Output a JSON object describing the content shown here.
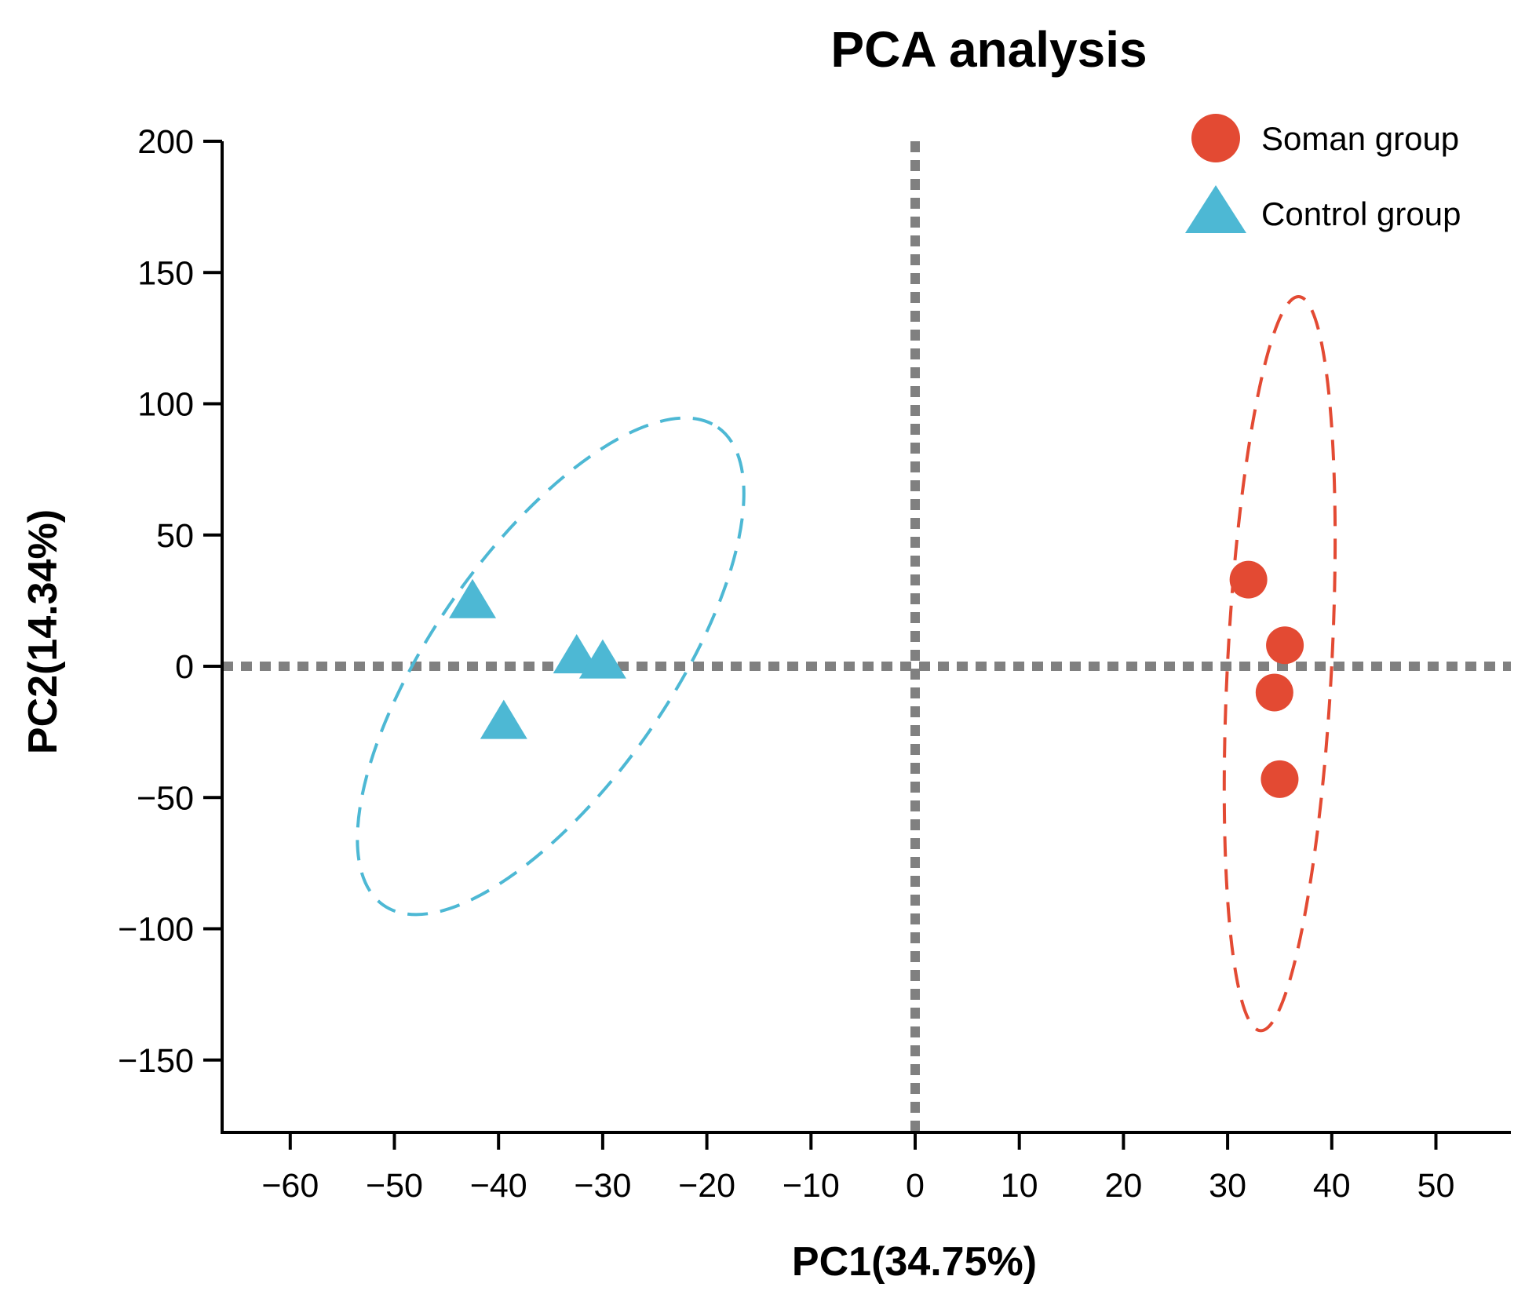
{
  "chart_data": {
    "type": "scatter",
    "title": "PCA analysis",
    "xlabel": "PC1(34.75%)",
    "ylabel": "PC2(14.34%)",
    "xlim": [
      -66,
      57
    ],
    "ylim": [
      -176,
      205
    ],
    "xticks": [
      -60,
      -50,
      -40,
      -30,
      -20,
      -10,
      0,
      10,
      20,
      30,
      40,
      50
    ],
    "xtick_labels": [
      "−60",
      "−50",
      "−40",
      "−30",
      "−20",
      "−10",
      "0",
      "10",
      "20",
      "30",
      "40",
      "50"
    ],
    "yticks": [
      200,
      150,
      100,
      50,
      0,
      -50,
      -100,
      -150
    ],
    "ytick_labels": [
      "200",
      "150",
      "100",
      "50",
      "0",
      "−50",
      "−100",
      "−150"
    ],
    "reference_lines": {
      "x": 0,
      "y": 0,
      "style": "dotted",
      "color": "#808080"
    },
    "legend_position": "top-right",
    "series": [
      {
        "name": "Soman group",
        "marker": "circle",
        "color": "#E34A33",
        "points": [
          {
            "x": 32,
            "y": 33
          },
          {
            "x": 35.5,
            "y": 8
          },
          {
            "x": 34.5,
            "y": -10
          },
          {
            "x": 35,
            "y": -43
          }
        ],
        "ellipse": {
          "center": [
            35,
            1
          ],
          "rx": 5,
          "ry": 140,
          "angle_deg": 3
        }
      },
      {
        "name": "Control group",
        "marker": "triangle",
        "color": "#4DB8D4",
        "points": [
          {
            "x": -42.5,
            "y": 24
          },
          {
            "x": -32.5,
            "y": 3
          },
          {
            "x": -30,
            "y": 1
          },
          {
            "x": -39.5,
            "y": -22
          }
        ],
        "ellipse": {
          "center": [
            -35,
            0
          ],
          "rx": 28,
          "ry": 45,
          "angle_deg": -55
        }
      }
    ]
  }
}
